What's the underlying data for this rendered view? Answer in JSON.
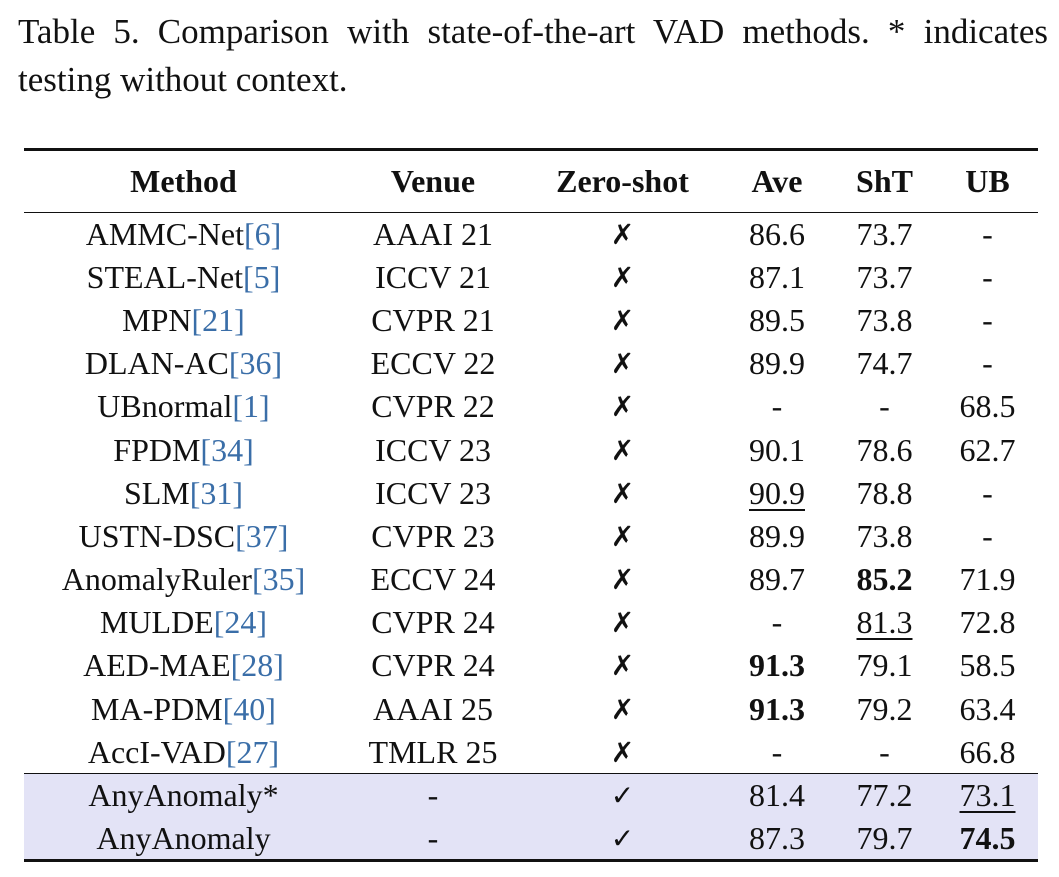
{
  "caption": "Table 5. Comparison with state-of-the-art VAD methods. * indicates testing without context.",
  "headers": {
    "method": "Method",
    "venue": "Venue",
    "zero_shot": "Zero-shot",
    "ave": "Ave",
    "sht": "ShT",
    "ub": "UB"
  },
  "rows": [
    {
      "name": "AMMC-Net",
      "ref": "[6]",
      "venue": "AAAI 21",
      "zs": "✗",
      "ave": "86.6",
      "sht": "73.7",
      "ub": "-"
    },
    {
      "name": "STEAL-Net",
      "ref": "[5]",
      "venue": "ICCV 21",
      "zs": "✗",
      "ave": "87.1",
      "sht": "73.7",
      "ub": "-"
    },
    {
      "name": "MPN",
      "ref": "[21]",
      "venue": "CVPR 21",
      "zs": "✗",
      "ave": "89.5",
      "sht": "73.8",
      "ub": "-"
    },
    {
      "name": "DLAN-AC",
      "ref": "[36]",
      "venue": "ECCV 22",
      "zs": "✗",
      "ave": "89.9",
      "sht": "74.7",
      "ub": "-"
    },
    {
      "name": "UBnormal",
      "ref": "[1]",
      "venue": "CVPR 22",
      "zs": "✗",
      "ave": "-",
      "sht": "-",
      "ub": "68.5"
    },
    {
      "name": "FPDM",
      "ref": "[34]",
      "venue": "ICCV 23",
      "zs": "✗",
      "ave": "90.1",
      "sht": "78.6",
      "ub": "62.7"
    },
    {
      "name": "SLM",
      "ref": "[31]",
      "venue": "ICCV 23",
      "zs": "✗",
      "ave": "90.9",
      "sht": "78.8",
      "ub": "-"
    },
    {
      "name": "USTN-DSC",
      "ref": "[37]",
      "venue": "CVPR 23",
      "zs": "✗",
      "ave": "89.9",
      "sht": "73.8",
      "ub": "-"
    },
    {
      "name": "AnomalyRuler",
      "ref": "[35]",
      "venue": "ECCV 24",
      "zs": "✗",
      "ave": "89.7",
      "sht": "85.2",
      "ub": "71.9"
    },
    {
      "name": "MULDE",
      "ref": "[24]",
      "venue": "CVPR 24",
      "zs": "✗",
      "ave": "-",
      "sht": "81.3",
      "ub": "72.8"
    },
    {
      "name": "AED-MAE",
      "ref": "[28]",
      "venue": "CVPR 24",
      "zs": "✗",
      "ave": "91.3",
      "sht": "79.1",
      "ub": "58.5"
    },
    {
      "name": "MA-PDM",
      "ref": "[40]",
      "venue": "AAAI 25",
      "zs": "✗",
      "ave": "91.3",
      "sht": "79.2",
      "ub": "63.4"
    },
    {
      "name": "AccI-VAD",
      "ref": "[27]",
      "venue": "TMLR 25",
      "zs": "✗",
      "ave": "-",
      "sht": "-",
      "ub": "66.8"
    }
  ],
  "ours": [
    {
      "name": "AnyAnomaly*",
      "venue": "-",
      "zs": "✓",
      "ave": "81.4",
      "sht": "77.2",
      "ub": "73.1"
    },
    {
      "name": "AnyAnomaly",
      "venue": "-",
      "zs": "✓",
      "ave": "87.3",
      "sht": "79.7",
      "ub": "74.5"
    }
  ],
  "colors": {
    "highlight_row_bg": "#e3e3f6",
    "reference_link": "#3a6ea8"
  }
}
